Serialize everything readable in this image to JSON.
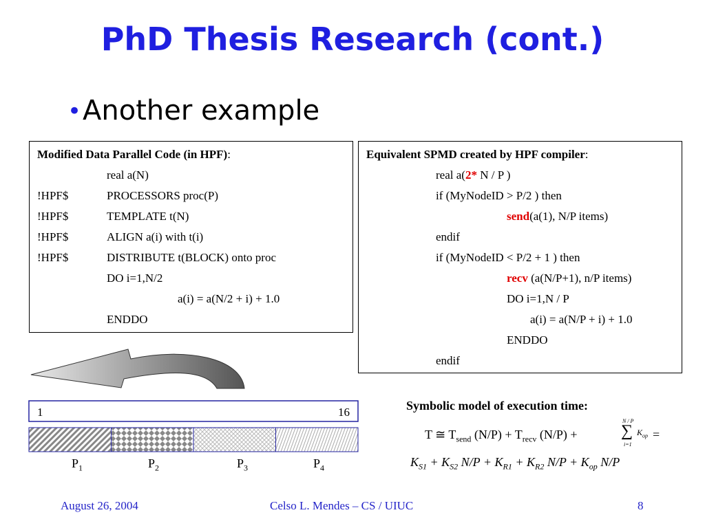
{
  "title": "PhD Thesis Research (cont.)",
  "bullet": "Another example",
  "left_box": {
    "heading": "Modified Data Parallel Code (in HPF)",
    "heading_colon": ":",
    "lines": [
      {
        "code": "real a(N)"
      },
      {
        "directive": "!HPF$",
        "code": "PROCESSORS proc(P)"
      },
      {
        "directive": "!HPF$",
        "code": "TEMPLATE t(N)"
      },
      {
        "directive": "!HPF$",
        "code": "ALIGN a(i) with t(i)"
      },
      {
        "directive": "!HPF$",
        "code": "DISTRIBUTE t(BLOCK) onto proc"
      },
      {
        "code": "DO i=1,N/2"
      },
      {
        "code": "a(i) =  a(N/2 + i) + 1.0"
      },
      {
        "code": "ENDDO"
      }
    ]
  },
  "right_box": {
    "heading": "Equivalent SPMD created by HPF compiler",
    "heading_colon": ":",
    "lines": [
      [
        "real a(",
        "2*",
        " N / P )"
      ],
      [
        "if (MyNodeID > P/2 ) then"
      ],
      [
        "send",
        "(a(1), N/P items)"
      ],
      [
        "endif"
      ],
      [
        "if (MyNodeID < P/2 + 1 ) then"
      ],
      [
        "recv",
        " (a(N/P+1), n/P items)"
      ],
      [
        "DO i=1,N / P"
      ],
      [
        "a(i) = a(N/P + i) + 1.0"
      ],
      [
        "ENDDO"
      ],
      [
        "endif"
      ]
    ]
  },
  "array": {
    "first": "1",
    "last": "16",
    "processors": [
      {
        "name": "P",
        "sub": "1"
      },
      {
        "name": "P",
        "sub": "2"
      },
      {
        "name": "P",
        "sub": "3"
      },
      {
        "name": "P",
        "sub": "4"
      }
    ]
  },
  "model": {
    "heading": "Symbolic model of execution time:",
    "line1": [
      "T ≅ T",
      "send",
      " (N/P) + T",
      "recv",
      " (N/P) + "
    ],
    "sum": {
      "upper": "N / P",
      "symbol": "∑",
      "lower": "i=1",
      "term": "K",
      "term_sub": "op"
    },
    "line1_end": " =",
    "line2": [
      "K",
      "S1",
      " + K",
      "S2",
      " N/P + K",
      "R1",
      " + K",
      "R2",
      " N/P + K",
      "op",
      " N/P"
    ]
  },
  "footer": {
    "date": "August 26, 2004",
    "author": "Celso L. Mendes – CS / UIUC",
    "page": "8"
  }
}
